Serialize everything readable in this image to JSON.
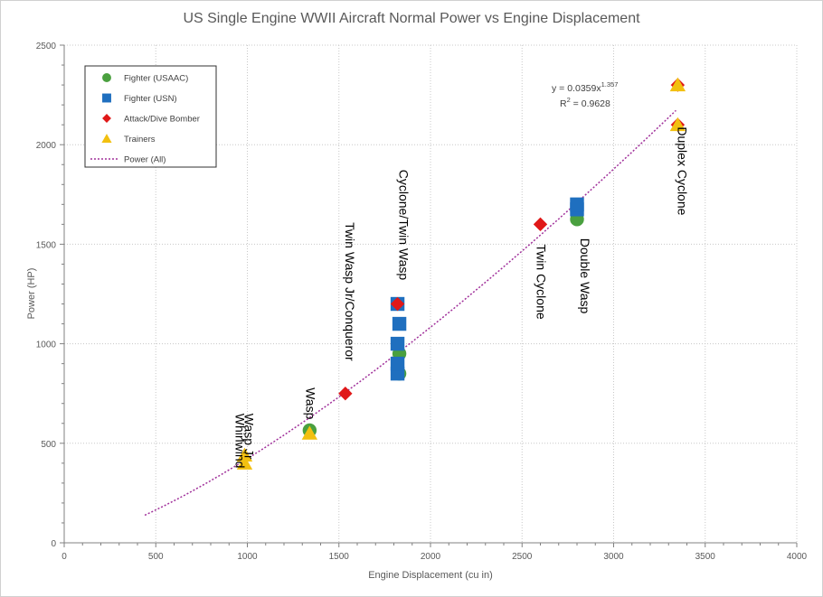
{
  "chart_data": {
    "type": "scatter",
    "title": "US Single Engine WWII Aircraft Normal Power vs Engine Displacement",
    "xlabel": "Engine Displacement (cu in)",
    "ylabel": "Power (HP)",
    "xlim": [
      0,
      4000
    ],
    "ylim": [
      0,
      2500
    ],
    "x_ticks": [
      "0",
      "500",
      "1000",
      "1500",
      "2000",
      "2500",
      "3000",
      "3500",
      "4000"
    ],
    "y_ticks": [
      "0",
      "500",
      "1000",
      "1500",
      "2000",
      "2500"
    ],
    "grid": "vertical and horizontal dotted",
    "legend_position": "top-left",
    "series": [
      {
        "name": "Fighter (USAAC)",
        "marker": "circle",
        "color": "#4aa03f",
        "points": [
          [
            1340,
            565
          ],
          [
            1830,
            850
          ],
          [
            1830,
            950
          ],
          [
            2800,
            1625
          ]
        ]
      },
      {
        "name": "Fighter (USN)",
        "marker": "square",
        "color": "#1f6fbf",
        "points": [
          [
            1820,
            850
          ],
          [
            1820,
            900
          ],
          [
            1820,
            1000
          ],
          [
            1830,
            1100
          ],
          [
            1820,
            1200
          ],
          [
            2800,
            1675
          ],
          [
            2800,
            1700
          ]
        ]
      },
      {
        "name": "Attack/Dive Bomber",
        "marker": "diamond",
        "color": "#e01818",
        "points": [
          [
            1535,
            750
          ],
          [
            1820,
            1200
          ],
          [
            2600,
            1600
          ],
          [
            3350,
            2100
          ],
          [
            3350,
            2300
          ]
        ]
      },
      {
        "name": "Trainers",
        "marker": "triangle",
        "color": "#f2c010",
        "points": [
          [
            985,
            400
          ],
          [
            985,
            440
          ],
          [
            1340,
            550
          ],
          [
            3350,
            2100
          ],
          [
            3350,
            2300
          ]
        ]
      }
    ],
    "trendline": {
      "name": "Power (All)",
      "type": "power",
      "coefficient": 0.0359,
      "exponent": 1.357,
      "x_range": [
        440,
        3340
      ],
      "color": "#a0309a",
      "equation_text": "y = 0.0359x",
      "equation_exponent": "1.357",
      "r2_prefix": "R",
      "r2_sup": "2",
      "r2_text": " = 0.9628"
    },
    "annotations": [
      {
        "id": "wasp-jr",
        "text": "Wasp Jr",
        "x": 985,
        "y": 650
      },
      {
        "id": "whirlwind",
        "text": "Whirlwind",
        "x": 935,
        "y": 650
      },
      {
        "id": "wasp",
        "text": "Wasp",
        "x": 1320,
        "y": 780
      },
      {
        "id": "twin-wasp-jr",
        "text": "Twin Wasp Jr/Conqueror",
        "x": 1535,
        "y": 1610
      },
      {
        "id": "cyclone-twin-wasp",
        "text": "Cyclone/Twin Wasp",
        "x": 1830,
        "y": 1875
      },
      {
        "id": "twin-cyclone",
        "text": "Twin Cyclone",
        "x": 2580,
        "y": 1500
      },
      {
        "id": "double-wasp",
        "text": "Double Wasp",
        "x": 2820,
        "y": 1530
      },
      {
        "id": "duplex-cyclone",
        "text": "Duplex Cyclone",
        "x": 3350,
        "y": 2090
      }
    ]
  }
}
